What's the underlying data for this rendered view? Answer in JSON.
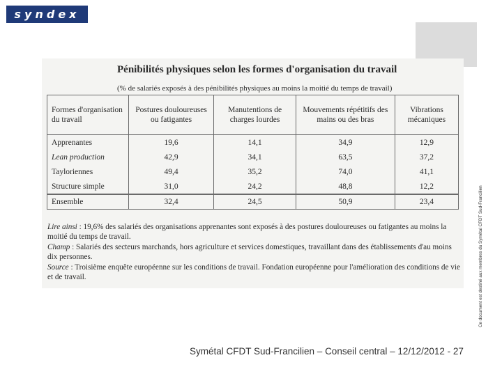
{
  "logo": {
    "text": "syndex"
  },
  "document": {
    "title": "Pénibilités physiques selon les formes d'organisation du travail",
    "subtitle": "(% de salariés exposés à des pénibilités physiques au moins la moitié du temps de travail)",
    "table": {
      "headers": [
        "Formes d'organisation du travail",
        "Postures douloureuses ou fatigantes",
        "Manutentions de charges lourdes",
        "Mouvements répétitifs des mains ou des bras",
        "Vibrations mécaniques"
      ],
      "rows": [
        [
          "Apprenantes",
          "19,6",
          "14,1",
          "34,9",
          "12,9"
        ],
        [
          "Lean production",
          "42,9",
          "34,1",
          "63,5",
          "37,2"
        ],
        [
          "Tayloriennes",
          "49,4",
          "35,2",
          "74,0",
          "41,1"
        ],
        [
          "Structure simple",
          "31,0",
          "24,2",
          "48,8",
          "12,2"
        ]
      ],
      "total": [
        "Ensemble",
        "32,4",
        "24,5",
        "50,9",
        "23,4"
      ]
    },
    "notes": {
      "lire_label": "Lire ainsi",
      "lire_text": " : 19,6% des salariés des organisations apprenantes sont exposés à des postures douloureuses ou fatigantes au moins la moitié du temps de travail.",
      "champ_label": "Champ",
      "champ_text": " : Salariés des secteurs marchands, hors agriculture et services domestiques, travaillant dans des établissements d'au moins dix personnes.",
      "source_label": "Source",
      "source_text": " : Troisième enquête européenne sur les conditions de travail. Fondation européenne pour l'amélioration des conditions de vie et de travail."
    }
  },
  "sidebar_note": "Ce document est destiné aux membres du Symétal CFDT Sud-Francilien",
  "footer": "Symétal CFDT Sud-Francilien – Conseil central – 12/12/2012 - 27"
}
